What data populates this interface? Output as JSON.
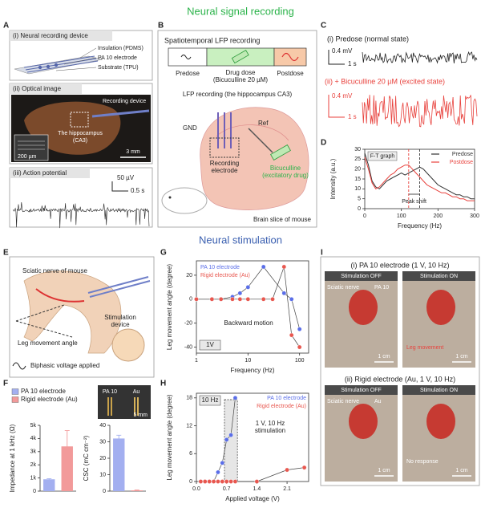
{
  "headings": {
    "recording": "Neural signal recording",
    "stimulation": "Neural stimulation"
  },
  "panel_letters": [
    "A",
    "B",
    "C",
    "D",
    "E",
    "F",
    "G",
    "H",
    "I"
  ],
  "panel_a": {
    "device_title": "(i) Neural recording device",
    "layers": [
      "Insulation (PDMS)",
      "PA 10 electrode",
      "Substrate (TPU)"
    ],
    "optical_title": "(ii) Optical image",
    "recording_device": "Recording device",
    "region": [
      "The hippocampus",
      "(CA3)"
    ],
    "inset_scale": "200 µm",
    "scale": "3 mm",
    "ap_title": "(iii) Action potential",
    "ap_v": "50 µV",
    "ap_t": "0.5 s"
  },
  "panel_b": {
    "title": "Spatiotemporal LFP recording",
    "phases": [
      "Predose",
      "Drug dose",
      "(Bicuculline 20 µM)",
      "Postdose"
    ],
    "subtitle": "LFP recording (the hippocampus CA3)",
    "gnd": "GND",
    "ref": "Ref",
    "electrode": [
      "Recording",
      "electrode"
    ],
    "drug": [
      "Bicuculline",
      "(excitatory drug)"
    ],
    "caption": "Brain slice of mouse"
  },
  "panel_c": {
    "predose": "(i) Predose (normal state)",
    "postdose": "(ii) + Bicuculline 20 µM (excited state)",
    "scale_v": "0.4 mV",
    "scale_t": "1 s"
  },
  "panel_e": {
    "nerve": "Sciatic nerve of mouse",
    "device": [
      "Stimulation",
      "device"
    ],
    "angle": "Leg movement angle",
    "voltage": "Biphasic voltage applied"
  },
  "panel_f_inset": {
    "pa": "PA 10",
    "au": "Au",
    "scale": "5 mm"
  },
  "panel_i": {
    "top": "(i) PA 10 electrode (1 V, 10 Hz)",
    "off": "Stimulation OFF",
    "on": "Stimulation ON",
    "nerve": "Sciatic nerve",
    "pa": "PA 10",
    "movement": "Leg movement",
    "scale": "1 cm",
    "bottom": "(ii) Rigid electrode (Au, 1 V, 10 Hz)",
    "au": "Au",
    "none": "No response"
  },
  "chart_data": [
    {
      "type": "line",
      "annotation": "F-T graph",
      "xlabel": "Frequency (Hz)",
      "ylabel": "Intensity (a.u.)",
      "x": [
        0,
        10,
        20,
        30,
        40,
        50,
        60,
        70,
        80,
        90,
        100,
        110,
        120,
        130,
        140,
        150,
        160,
        170,
        180,
        190,
        200,
        210,
        220,
        230,
        240,
        250,
        260,
        270,
        280,
        290,
        300
      ],
      "series": [
        {
          "name": "Predose",
          "color": "#333333",
          "values": [
            28,
            22,
            14,
            11,
            10,
            12,
            14,
            15,
            16,
            17,
            18,
            17,
            18,
            19,
            20,
            21,
            20,
            18,
            16,
            14,
            12,
            11,
            10,
            9,
            8,
            7,
            7,
            6,
            6,
            5,
            5
          ]
        },
        {
          "name": "Postdose",
          "color": "#e8413c",
          "values": [
            26,
            20,
            13,
            10,
            11,
            13,
            15,
            17,
            18,
            20,
            21,
            22,
            22,
            20,
            18,
            16,
            14,
            12,
            11,
            10,
            9,
            8,
            8,
            7,
            6,
            6,
            5,
            5,
            4,
            4,
            4
          ]
        }
      ],
      "peaks": [
        {
          "value": 120,
          "color": "#e8413c"
        },
        {
          "value": 150,
          "color": "#333333"
        }
      ],
      "peak_label": "Peak shift",
      "xlim": [
        0,
        300
      ],
      "xticks": [
        0,
        100,
        200,
        300
      ],
      "ylim": [
        0,
        30
      ],
      "yticks": [
        0,
        5,
        10,
        15,
        20,
        25,
        30
      ]
    },
    {
      "type": "bar",
      "ylabel": "Impedance at 1 kHz (Ω)",
      "series": [
        {
          "name": "PA 10 electrode",
          "color": "#a3aff0",
          "values": [
            900
          ],
          "errors": [
            50
          ]
        },
        {
          "name": "Rigid electrode (Au)",
          "color": "#f29a9a",
          "values": [
            3400
          ],
          "errors": [
            1200
          ]
        }
      ],
      "ylim": [
        0,
        5000
      ],
      "yticks": [
        0,
        {
          "value": 1000,
          "label": "1k"
        },
        {
          "value": 2000,
          "label": "2k"
        },
        {
          "value": 3000,
          "label": "3k"
        },
        {
          "value": 4000,
          "label": "4k"
        },
        {
          "value": 5000,
          "label": "5k"
        }
      ]
    },
    {
      "type": "bar",
      "ylabel": "CSC (mC cm⁻²)",
      "series": [
        {
          "color": "#a3aff0",
          "values": [
            32
          ],
          "errors": [
            2
          ]
        },
        {
          "color": "#f29a9a",
          "values": [
            0.5
          ],
          "errors": [
            0.2
          ]
        }
      ],
      "ylim": [
        0,
        40
      ],
      "yticks": [
        0,
        10,
        20,
        30,
        40
      ]
    },
    {
      "type": "line",
      "log_x": true,
      "condition": "1V",
      "annotation": "Backward motion",
      "xlabel": "Frequency (Hz)",
      "ylabel": "Leg movement angle (degree)",
      "series": [
        {
          "name": "PA 10 electrode",
          "color": "#5a6ee8",
          "x": [
            1,
            2,
            3,
            5,
            7,
            10,
            20,
            50,
            70,
            100
          ],
          "values": [
            0,
            0,
            0,
            2,
            5,
            10,
            27,
            5,
            0,
            -25
          ]
        },
        {
          "name": "Rigid electrode (Au)",
          "color": "#e8574f",
          "x": [
            1,
            2,
            3,
            5,
            7,
            10,
            20,
            30,
            50,
            70,
            100
          ],
          "values": [
            0,
            0,
            0,
            0,
            0,
            0,
            0,
            0,
            27,
            -30,
            -40
          ]
        }
      ],
      "xlim": [
        1,
        150
      ],
      "xticks": [
        1,
        10,
        100
      ],
      "ylim": [
        -45,
        32
      ],
      "yticks": [
        -40,
        -20,
        0,
        20
      ]
    },
    {
      "type": "line",
      "condition": "10 Hz",
      "annotation": [
        "1 V, 10 Hz",
        "stimulation"
      ],
      "highlight": [
        0.65,
        0.95
      ],
      "xlabel": "Applied voltage (V)",
      "ylabel": "Leg movement angle (degree)",
      "series": [
        {
          "name": "PA 10 electrode",
          "color": "#5a6ee8",
          "x": [
            0.1,
            0.2,
            0.3,
            0.4,
            0.5,
            0.6,
            0.7,
            0.8,
            0.9
          ],
          "values": [
            0,
            0,
            0,
            0,
            2,
            4,
            9,
            10,
            18
          ]
        },
        {
          "name": "Rigid electrode (Au)",
          "color": "#e8574f",
          "x": [
            0.1,
            0.2,
            0.3,
            0.4,
            0.5,
            0.6,
            0.7,
            0.8,
            0.9,
            1.4,
            2.1,
            2.5
          ],
          "values": [
            0,
            0,
            0,
            0,
            0,
            0,
            0,
            0,
            0,
            0,
            2.5,
            3
          ]
        }
      ],
      "xlim": [
        0,
        2.6
      ],
      "xticks": [
        {
          "value": 0,
          "label": "0.0"
        },
        0.7,
        1.4,
        2.1
      ],
      "ylim": [
        0,
        19
      ],
      "yticks": [
        0,
        6,
        12,
        18
      ]
    }
  ]
}
